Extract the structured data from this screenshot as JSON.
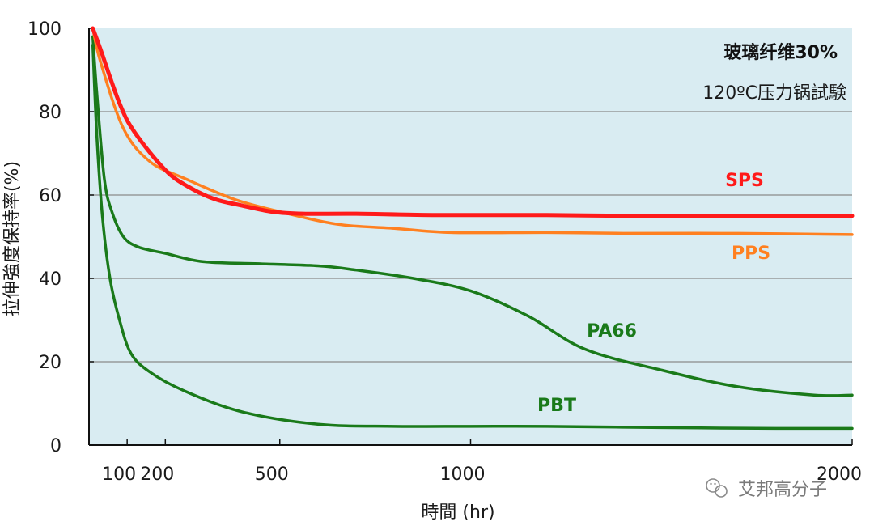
{
  "chart_data": {
    "type": "line",
    "xlabel": "時間 (hr)",
    "ylabel": "拉伸強度保持率(%)",
    "xlim": [
      0,
      2000
    ],
    "ylim": [
      0,
      100
    ],
    "x_ticks": [
      100,
      200,
      500,
      1000,
      2000
    ],
    "y_ticks": [
      0,
      20,
      40,
      60,
      80,
      100
    ],
    "grid": "horizontal",
    "background_color": "#d9ecf2",
    "annotations": [
      "玻璃纤维30%",
      "120ºC压力锅試験"
    ],
    "series": [
      {
        "name": "SPS",
        "color": "#ff1a1a",
        "x": [
          10,
          30,
          80,
          120,
          200,
          260,
          330,
          400,
          480,
          560,
          700,
          900,
          1200,
          1400,
          1700,
          2000
        ],
        "y": [
          100,
          95,
          82,
          75,
          66,
          62,
          59,
          57.5,
          56,
          55.5,
          55.5,
          55.2,
          55.2,
          55,
          55,
          55
        ]
      },
      {
        "name": "PPS",
        "color": "#ff8020",
        "x": [
          10,
          30,
          90,
          160,
          250,
          380,
          500,
          650,
          800,
          950,
          1200,
          1400,
          1700,
          2000
        ],
        "y": [
          100,
          92,
          76,
          68,
          64,
          59,
          56,
          53,
          52,
          51,
          51,
          50.8,
          50.8,
          50.5
        ]
      },
      {
        "name": "PA66",
        "color": "#1a7a1a",
        "x": [
          10,
          20,
          40,
          60,
          90,
          130,
          200,
          300,
          450,
          600,
          700,
          850,
          1000,
          1150,
          1300,
          1500,
          1700,
          1900,
          2000
        ],
        "y": [
          98,
          85,
          64,
          56,
          50,
          47.5,
          46,
          44,
          43.5,
          43,
          42,
          40,
          37,
          31,
          23,
          18,
          14,
          12,
          12
        ]
      },
      {
        "name": "PBT",
        "color": "#1a7a1a",
        "x": [
          10,
          20,
          35,
          55,
          80,
          110,
          160,
          250,
          400,
          600,
          800,
          1000,
          1200,
          1500,
          1800,
          2000
        ],
        "y": [
          96,
          75,
          55,
          40,
          30,
          22,
          17.5,
          13,
          8,
          5,
          4.5,
          4.5,
          4.5,
          4.2,
          4,
          4
        ]
      }
    ]
  },
  "watermark": {
    "icon": "wechat-icon",
    "text": "艾邦高分子"
  }
}
